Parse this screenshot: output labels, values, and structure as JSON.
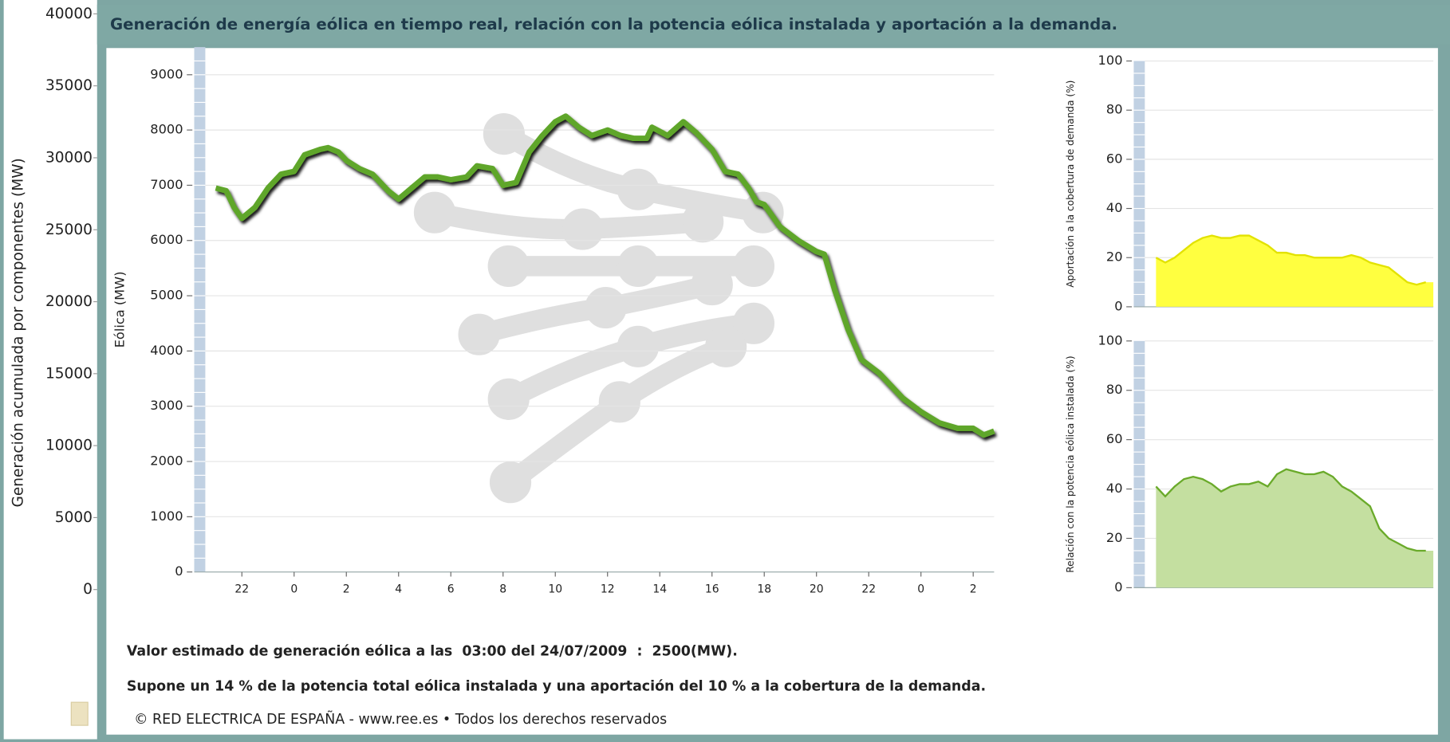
{
  "header": {
    "title": "Generación de energía eólica en tiempo real, relación con la potencia eólica instalada y aportación a la demanda."
  },
  "left_axis": {
    "label": "Generación acumulada por componentes (MW)",
    "ylim": [
      0,
      40000
    ],
    "yticks": [
      0,
      5000,
      10000,
      15000,
      20000,
      25000,
      30000,
      35000,
      40000
    ]
  },
  "chart_data": [
    {
      "type": "line",
      "ylabel": "Eólica (MW)",
      "x": [
        -1,
        -0.6,
        -0.3,
        0,
        0.5,
        1,
        1.5,
        2,
        2.4,
        3,
        3.3,
        3.7,
        4,
        4.5,
        5,
        5.6,
        6,
        6.5,
        7,
        7.5,
        8,
        8.6,
        9,
        9.6,
        10,
        10.5,
        11,
        11.5,
        12,
        12.4,
        12.9,
        13.4,
        14,
        14.5,
        15,
        15.5,
        15.7,
        16.3,
        16.9,
        17.4,
        18,
        18.5,
        19,
        19.4,
        19.7,
        20,
        20.6,
        21.3,
        22,
        22.3,
        22.7,
        23.2,
        23.7,
        24.4,
        25.3,
        26,
        26.7,
        27.4,
        28,
        28.4,
        28.8
      ],
      "series": [
        {
          "color": "#5fa62a",
          "values": [
            6950,
            6900,
            6600,
            6400,
            6600,
            6950,
            7200,
            7250,
            7550,
            7650,
            7680,
            7600,
            7450,
            7300,
            7200,
            6900,
            6750,
            6950,
            7150,
            7150,
            7100,
            7150,
            7350,
            7300,
            7000,
            7050,
            7600,
            7900,
            8150,
            8250,
            8050,
            7900,
            8000,
            7900,
            7850,
            7850,
            8050,
            7900,
            8150,
            7950,
            7650,
            7250,
            7200,
            6950,
            6700,
            6650,
            6250,
            6000,
            5800,
            5750,
            5100,
            4400,
            3850,
            3600,
            3150,
            2900,
            2700,
            2600,
            2600,
            2480,
            2550
          ]
        }
      ],
      "xlim": [
        -1.4,
        28.8
      ],
      "xticks": [
        {
          "value": 0,
          "label": "22"
        },
        {
          "value": 2,
          "label": "0"
        },
        {
          "value": 4,
          "label": "2"
        },
        {
          "value": 6,
          "label": "4"
        },
        {
          "value": 8,
          "label": "6"
        },
        {
          "value": 10,
          "label": "8"
        },
        {
          "value": 12,
          "label": "10"
        },
        {
          "value": 14,
          "label": "12"
        },
        {
          "value": 16,
          "label": "14"
        },
        {
          "value": 18,
          "label": "16"
        },
        {
          "value": 20,
          "label": "18"
        },
        {
          "value": 22,
          "label": "20"
        },
        {
          "value": 24,
          "label": "22"
        },
        {
          "value": 26,
          "label": "0"
        },
        {
          "value": 28,
          "label": "2"
        }
      ],
      "ylim": [
        0,
        9500
      ],
      "yticks": [
        0,
        1000,
        2000,
        3000,
        4000,
        5000,
        6000,
        7000,
        8000,
        9000
      ],
      "grid": true
    },
    {
      "type": "area",
      "ylabel": "Aportación a la cobertura de demanda (%)",
      "x": [
        -1,
        0,
        1,
        2,
        3,
        4,
        5,
        6,
        7,
        8,
        9,
        10,
        11,
        12,
        13,
        14,
        15,
        16,
        17,
        18,
        19,
        20,
        21,
        22,
        23,
        24,
        25,
        26,
        27,
        28
      ],
      "series": [
        {
          "color": "#ffff40",
          "line_color": "#e2e200",
          "values": [
            20,
            18,
            20,
            23,
            26,
            28,
            29,
            28,
            28,
            29,
            29,
            27,
            25,
            22,
            22,
            21,
            21,
            20,
            20,
            20,
            20,
            21,
            20,
            18,
            17,
            16,
            13,
            10,
            9,
            10
          ]
        }
      ],
      "xlim": [
        -2.2,
        28.8
      ],
      "ylim": [
        0,
        100
      ],
      "yticks": [
        0,
        20,
        40,
        60,
        80,
        100
      ],
      "grid": true
    },
    {
      "type": "area",
      "ylabel": "Relación con la potencia eólica instalada (%)",
      "x": [
        -1,
        0,
        1,
        2,
        3,
        4,
        5,
        6,
        7,
        8,
        9,
        10,
        11,
        12,
        13,
        14,
        15,
        16,
        17,
        18,
        19,
        20,
        21,
        22,
        23,
        24,
        25,
        26,
        27,
        28
      ],
      "series": [
        {
          "color": "#c4dfa0",
          "line_color": "#6aaa2a",
          "values": [
            41,
            37,
            41,
            44,
            45,
            44,
            42,
            39,
            41,
            42,
            42,
            43,
            41,
            46,
            48,
            47,
            46,
            46,
            47,
            45,
            41,
            39,
            36,
            33,
            24,
            20,
            18,
            16,
            15,
            15
          ]
        }
      ],
      "xlim": [
        -2.2,
        28.8
      ],
      "ylim": [
        0,
        100
      ],
      "yticks": [
        0,
        20,
        40,
        60,
        80,
        100
      ],
      "grid": true
    }
  ],
  "notes": [
    "Valor estimado de generación eólica a las  03:00 del 24/07/2009  :  2500(MW).",
    "Supone un 14 % de la potencia total eólica instalada y una aportación del 10 % a la cobertura de la demanda."
  ],
  "footer": "© RED ELECTRICA DE ESPAÑA - www.ree.es • Todos los derechos reservados"
}
